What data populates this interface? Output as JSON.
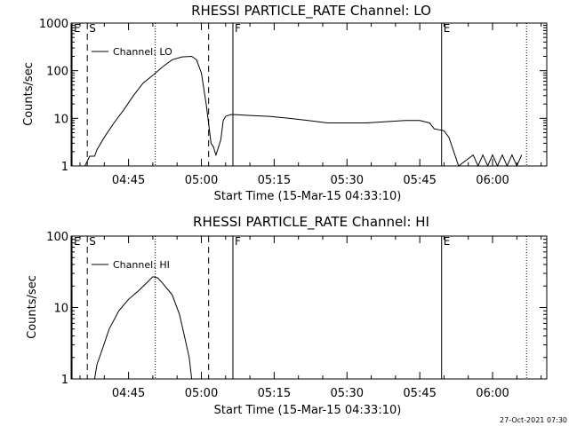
{
  "chart_data": [
    {
      "type": "line",
      "title": "RHESSI PARTICLE_RATE Channel: LO",
      "xlabel": "Start Time (15-Mar-15 04:33:10)",
      "ylabel": "Counts/sec",
      "yscale": "log",
      "ylim": [
        1,
        1000
      ],
      "xlim": [
        "04:33:10",
        "06:11:10"
      ],
      "x_tick_labels": [
        "04:45",
        "05:00",
        "05:15",
        "05:30",
        "05:45",
        "06:00"
      ],
      "y_tick_labels": [
        "1",
        "10",
        "100",
        "1000"
      ],
      "legend": {
        "label": "Channel: LO",
        "placement": "top-left"
      },
      "series": [
        {
          "name": "Channel: LO",
          "points": [
            [
              "04:36:00",
              1
            ],
            [
              "04:37:00",
              1.6
            ],
            [
              "04:38:00",
              1.6
            ],
            [
              "04:38:30",
              2.2
            ],
            [
              "04:40:00",
              4
            ],
            [
              "04:42:00",
              8
            ],
            [
              "04:44:00",
              15
            ],
            [
              "04:46:00",
              30
            ],
            [
              "04:48:00",
              55
            ],
            [
              "04:50:00",
              80
            ],
            [
              "04:52:00",
              120
            ],
            [
              "04:54:00",
              170
            ],
            [
              "04:56:00",
              195
            ],
            [
              "04:58:00",
              200
            ],
            [
              "04:59:00",
              170
            ],
            [
              "05:00:00",
              90
            ],
            [
              "05:01:00",
              20
            ],
            [
              "05:02:00",
              3
            ],
            [
              "05:02:30",
              2.5
            ],
            [
              "05:03:00",
              1.7
            ],
            [
              "05:04:00",
              3.5
            ],
            [
              "05:04:30",
              9
            ],
            [
              "05:05:00",
              11
            ],
            [
              "05:06:00",
              12
            ],
            [
              "05:07:00",
              12
            ],
            [
              "05:10:00",
              11.5
            ],
            [
              "05:14:00",
              11
            ],
            [
              "05:18:00",
              10
            ],
            [
              "05:22:00",
              9
            ],
            [
              "05:26:00",
              8
            ],
            [
              "05:30:00",
              8
            ],
            [
              "05:34:00",
              8
            ],
            [
              "05:38:00",
              8.5
            ],
            [
              "05:42:00",
              9
            ],
            [
              "05:45:00",
              9
            ],
            [
              "05:47:00",
              8
            ],
            [
              "05:48:00",
              6
            ],
            [
              "05:50:00",
              5.5
            ],
            [
              "05:51:00",
              4
            ],
            [
              "05:52:00",
              2
            ],
            [
              "05:53:00",
              1
            ],
            [
              "05:56:00",
              1.7
            ],
            [
              "05:57:00",
              1
            ],
            [
              "05:58:00",
              1.7
            ],
            [
              "05:59:00",
              1
            ],
            [
              "06:00:00",
              1.7
            ],
            [
              "06:01:00",
              1
            ],
            [
              "06:02:00",
              1.7
            ],
            [
              "06:03:00",
              1
            ],
            [
              "06:04:00",
              1.7
            ],
            [
              "06:05:00",
              1
            ],
            [
              "06:06:00",
              1.7
            ]
          ]
        }
      ],
      "annotations": [
        {
          "label": "E",
          "time": "04:33:10",
          "style": "solid"
        },
        {
          "label": "S",
          "time": "04:36:30",
          "style": "dashed"
        },
        {
          "label": "",
          "time": "04:50:30",
          "style": "dotted"
        },
        {
          "label": "",
          "time": "05:01:30",
          "style": "dashed"
        },
        {
          "label": "F",
          "time": "05:06:30",
          "style": "solid"
        },
        {
          "label": "E",
          "time": "05:49:30",
          "style": "solid"
        },
        {
          "label": "",
          "time": "06:07:00",
          "style": "dotted"
        }
      ]
    },
    {
      "type": "line",
      "title": "RHESSI PARTICLE_RATE Channel: HI",
      "xlabel": "Start Time (15-Mar-15 04:33:10)",
      "ylabel": "Counts/sec",
      "yscale": "log",
      "ylim": [
        1,
        100
      ],
      "xlim": [
        "04:33:10",
        "06:11:10"
      ],
      "x_tick_labels": [
        "04:45",
        "05:00",
        "05:15",
        "05:30",
        "05:45",
        "06:00"
      ],
      "y_tick_labels": [
        "1",
        "10",
        "100"
      ],
      "legend": {
        "label": "Channel: HI",
        "placement": "top-left"
      },
      "series": [
        {
          "name": "Channel: HI",
          "points": [
            [
              "04:38:00",
              1
            ],
            [
              "04:38:30",
              1.6
            ],
            [
              "04:39:30",
              2.5
            ],
            [
              "04:41:00",
              5
            ],
            [
              "04:43:00",
              9
            ],
            [
              "04:45:00",
              13
            ],
            [
              "04:47:00",
              17
            ],
            [
              "04:49:00",
              23
            ],
            [
              "04:50:00",
              27
            ],
            [
              "04:51:00",
              26
            ],
            [
              "04:52:00",
              22
            ],
            [
              "04:54:00",
              15
            ],
            [
              "04:55:30",
              8
            ],
            [
              "04:56:30",
              4
            ],
            [
              "04:57:30",
              2
            ],
            [
              "04:58:00",
              1
            ]
          ]
        }
      ],
      "annotations": [
        {
          "label": "E",
          "time": "04:33:10",
          "style": "solid"
        },
        {
          "label": "S",
          "time": "04:36:30",
          "style": "dashed"
        },
        {
          "label": "",
          "time": "04:50:30",
          "style": "dotted"
        },
        {
          "label": "",
          "time": "05:01:30",
          "style": "dashed"
        },
        {
          "label": "F",
          "time": "05:06:30",
          "style": "solid"
        },
        {
          "label": "E",
          "time": "05:49:30",
          "style": "solid"
        },
        {
          "label": "",
          "time": "06:07:00",
          "style": "dotted"
        }
      ]
    }
  ],
  "footer": {
    "timestamp": "27-Oct-2021 07:30"
  }
}
